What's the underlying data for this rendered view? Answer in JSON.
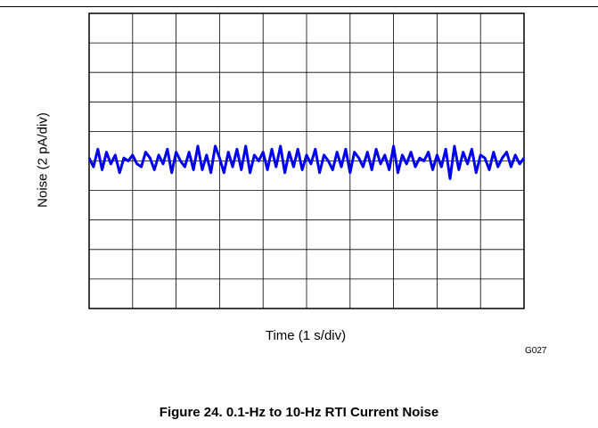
{
  "chart_data": {
    "type": "line",
    "title": "",
    "xlabel": "Time (1 s/div)",
    "ylabel": "Noise (2 pA/div)",
    "x_divisions": 10,
    "y_divisions": 10,
    "xlim": [
      0,
      10
    ],
    "ylim": [
      -10,
      10
    ],
    "grid": true,
    "series": [
      {
        "color": "#0000ee",
        "x": [
          0,
          0.1,
          0.2,
          0.3,
          0.4,
          0.5,
          0.6,
          0.7,
          0.8,
          0.9,
          1.0,
          1.1,
          1.2,
          1.3,
          1.4,
          1.5,
          1.6,
          1.7,
          1.8,
          1.9,
          2.0,
          2.1,
          2.2,
          2.3,
          2.4,
          2.5,
          2.6,
          2.7,
          2.8,
          2.9,
          3.0,
          3.1,
          3.2,
          3.3,
          3.4,
          3.5,
          3.6,
          3.7,
          3.8,
          3.9,
          4.0,
          4.1,
          4.2,
          4.3,
          4.4,
          4.5,
          4.6,
          4.7,
          4.8,
          4.9,
          5.0,
          5.1,
          5.2,
          5.3,
          5.4,
          5.5,
          5.6,
          5.7,
          5.8,
          5.9,
          6.0,
          6.1,
          6.2,
          6.3,
          6.4,
          6.5,
          6.6,
          6.7,
          6.8,
          6.9,
          7.0,
          7.1,
          7.2,
          7.3,
          7.4,
          7.5,
          7.6,
          7.7,
          7.8,
          7.9,
          8.0,
          8.1,
          8.2,
          8.3,
          8.4,
          8.5,
          8.6,
          8.7,
          8.8,
          8.9,
          9.0,
          9.1,
          9.2,
          9.3,
          9.4,
          9.5,
          9.6,
          9.7,
          9.8,
          9.9,
          10.0
        ],
        "y": [
          0.2,
          -0.4,
          0.8,
          -0.6,
          0.6,
          -0.2,
          0.4,
          -0.8,
          0.2,
          0.0,
          0.4,
          -0.2,
          -0.4,
          0.6,
          0.2,
          -0.6,
          0.4,
          -0.2,
          0.8,
          -0.8,
          0.6,
          0.0,
          -0.4,
          0.6,
          -0.6,
          1.0,
          -0.6,
          0.4,
          -0.8,
          1.0,
          0.2,
          -0.8,
          0.6,
          -0.4,
          0.8,
          -0.6,
          1.0,
          -0.8,
          0.4,
          0.0,
          0.6,
          -0.6,
          0.8,
          -0.4,
          1.0,
          -0.8,
          0.6,
          -0.4,
          0.8,
          -0.6,
          0.4,
          -0.2,
          0.8,
          -0.8,
          0.4,
          0.0,
          -0.6,
          0.6,
          -0.4,
          0.8,
          -0.8,
          0.6,
          0.2,
          -0.4,
          0.6,
          -0.6,
          0.8,
          -0.2,
          0.4,
          -0.6,
          1.0,
          -0.8,
          0.4,
          -0.2,
          0.6,
          -0.4,
          0.2,
          0.0,
          0.6,
          -0.6,
          0.4,
          -0.4,
          0.8,
          -1.2,
          1.0,
          -0.6,
          0.6,
          -0.2,
          0.8,
          -0.8,
          0.4,
          0.2,
          -0.6,
          0.6,
          -0.4,
          0.2,
          0.6,
          -0.4,
          0.4,
          -0.2,
          0.2
        ]
      }
    ]
  },
  "figure": {
    "code": "G027",
    "caption": "Figure 24. 0.1-Hz to 10-Hz RTI Current Noise"
  }
}
